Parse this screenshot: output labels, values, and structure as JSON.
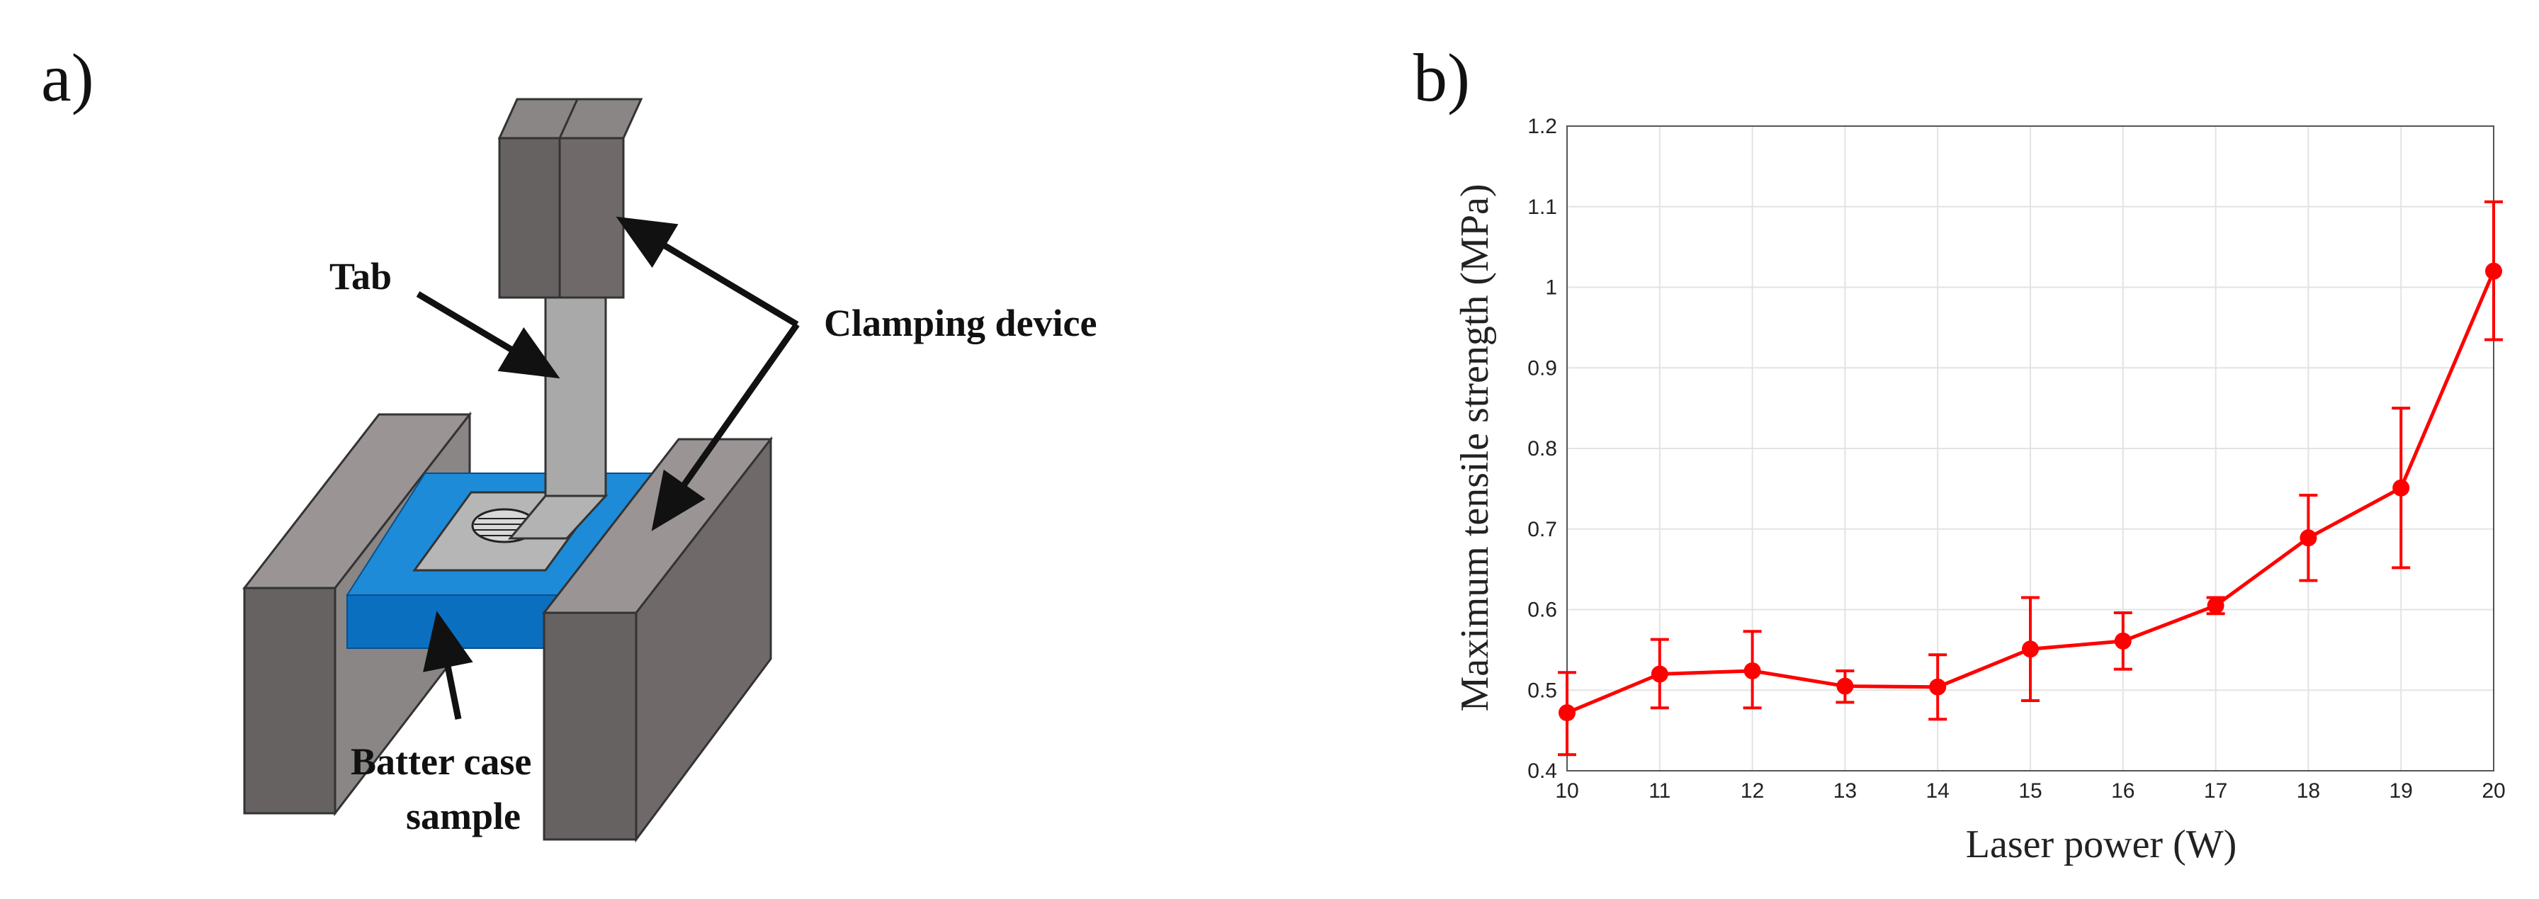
{
  "panels": {
    "a": {
      "label": "a)"
    },
    "b": {
      "label": "b)"
    }
  },
  "diagram": {
    "callouts": {
      "tab": "Tab",
      "clamping": "Clamping device",
      "batter_line1": "Batter case",
      "batter_line2": "sample"
    },
    "colors": {
      "block_front": "#666262",
      "block_side": "#8a8685",
      "block_top": "#9a9594",
      "case_top": "#1d8bd8",
      "case_front": "#0b6fc0",
      "tab": "#a9a9a9",
      "plate": "#b6b6b6"
    }
  },
  "chart_data": {
    "type": "line",
    "x": [
      10,
      11,
      12,
      13,
      14,
      15,
      16,
      17,
      18,
      19,
      20
    ],
    "series": [
      {
        "values": [
          0.472,
          0.52,
          0.524,
          0.505,
          0.504,
          0.551,
          0.561,
          0.605,
          0.689,
          0.751,
          1.02
        ],
        "err_low": [
          0.052,
          0.042,
          0.046,
          0.02,
          0.04,
          0.064,
          0.035,
          0.01,
          0.053,
          0.099,
          0.085
        ],
        "err_high": [
          0.05,
          0.043,
          0.049,
          0.019,
          0.04,
          0.064,
          0.035,
          0.01,
          0.053,
          0.099,
          0.086
        ]
      }
    ],
    "xlabel": "Laser power (W)",
    "ylabel": "Maximum tensile strength (MPa)",
    "xlim": [
      10,
      20
    ],
    "ylim": [
      0.4,
      1.2
    ],
    "xticks": [
      "10",
      "11",
      "12",
      "13",
      "14",
      "15",
      "16",
      "17",
      "18",
      "19",
      "20"
    ],
    "yticks": [
      "0.4",
      "0.5",
      "0.6",
      "0.7",
      "0.8",
      "0.9",
      "1",
      "1.1",
      "1.2"
    ],
    "grid": true,
    "color": "#ff0000"
  }
}
